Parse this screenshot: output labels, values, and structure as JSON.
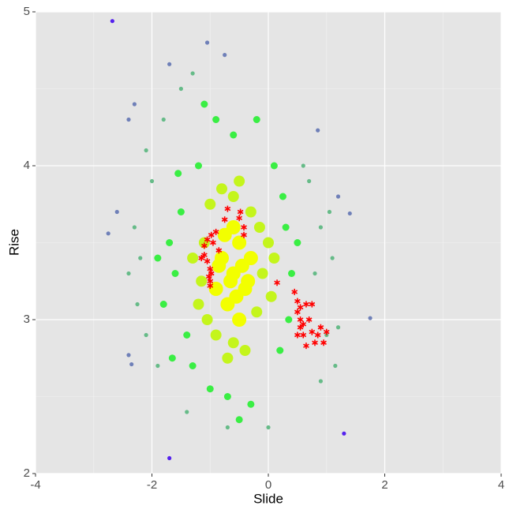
{
  "chart_data": {
    "type": "scatter",
    "x_label": "Slide",
    "y_label": "Rise",
    "xlim": [
      -4,
      4
    ],
    "xticks": [
      -4,
      -2,
      0,
      2,
      4
    ],
    "ylim": [
      2,
      5
    ],
    "yticks": [
      2,
      3,
      4,
      5
    ],
    "grid": true,
    "series": [
      {
        "color": "#f2ff00",
        "marker": "circle",
        "x": [
          -0.6,
          -0.4,
          -0.8,
          -0.5,
          -0.7,
          -0.3,
          -0.9,
          -0.6,
          -0.5,
          -0.75,
          -0.45,
          -0.65,
          -0.55,
          -0.85,
          -0.35
        ],
        "values": [
          3.3,
          3.2,
          3.4,
          3.5,
          3.1,
          3.4,
          3.2,
          3.6,
          3.0,
          3.55,
          3.35,
          3.25,
          3.15,
          3.35,
          3.25
        ]
      },
      {
        "color": "#c4f51c",
        "marker": "circle",
        "x": [
          -1.1,
          -0.1,
          -0.6,
          -0.6,
          -1.2,
          0.0,
          -0.2,
          -1.0,
          -0.3,
          -0.9,
          -1.3,
          0.05,
          -0.4,
          -0.8,
          -1.15,
          -0.15,
          -0.7,
          -0.5,
          -1.05,
          0.1
        ],
        "values": [
          3.5,
          3.3,
          3.8,
          2.85,
          3.1,
          3.5,
          3.05,
          3.75,
          3.7,
          2.9,
          3.4,
          3.15,
          2.8,
          3.85,
          3.25,
          3.6,
          2.75,
          3.9,
          3.0,
          3.4
        ]
      },
      {
        "color": "#3aee44",
        "marker": "circle",
        "x": [
          -1.6,
          -1.5,
          -1.4,
          0.4,
          0.3,
          -0.6,
          -0.7,
          -1.2,
          0.1,
          -1.7,
          -1.3,
          0.2,
          -0.2,
          -1.0,
          0.5,
          -1.8,
          -0.9,
          -0.3,
          0.35,
          -1.55,
          -1.9,
          0.25,
          -0.5,
          -1.1,
          -1.65
        ],
        "values": [
          3.3,
          3.7,
          2.9,
          3.3,
          3.6,
          4.2,
          2.5,
          4.0,
          4.0,
          3.5,
          2.7,
          2.8,
          4.3,
          2.55,
          3.5,
          3.1,
          4.3,
          2.45,
          3.0,
          3.95,
          3.4,
          3.8,
          2.35,
          4.4,
          2.75
        ]
      },
      {
        "color": "#66bb88",
        "marker": "circle",
        "x": [
          -2.2,
          -2.0,
          -2.1,
          0.8,
          0.9,
          1.0,
          0.7,
          -1.8,
          -2.3,
          -2.25,
          1.1,
          0.6,
          -1.5,
          -1.9,
          1.2,
          -2.4,
          0.9,
          -1.4,
          -0.7,
          1.05,
          -1.3,
          0.0,
          1.15,
          -2.1
        ],
        "values": [
          3.4,
          3.9,
          2.9,
          3.3,
          3.6,
          2.9,
          3.9,
          4.3,
          3.6,
          3.1,
          3.4,
          4.0,
          4.5,
          2.7,
          2.95,
          3.3,
          2.6,
          2.4,
          2.3,
          3.7,
          4.6,
          2.3,
          2.7,
          4.1
        ]
      },
      {
        "color": "#6f80b8",
        "marker": "circle",
        "x": [
          -2.3,
          -2.6,
          -2.75,
          1.4,
          0.85,
          1.75,
          -1.05,
          -0.75,
          -2.4,
          -2.35,
          -1.7,
          -2.4,
          1.2
        ],
        "values": [
          4.4,
          3.7,
          3.56,
          3.69,
          4.23,
          3.01,
          4.8,
          4.72,
          2.77,
          2.71,
          4.66,
          4.3,
          3.8
        ]
      },
      {
        "color": "#5522ee",
        "marker": "circle",
        "x": [
          -2.68,
          -1.7,
          1.3
        ],
        "values": [
          4.94,
          2.1,
          2.26
        ]
      },
      {
        "color": "#ff0000",
        "marker": "star",
        "x": [
          -1.0,
          -1.0,
          -1.02,
          -0.98,
          -1.0,
          -1.05,
          -1.1,
          -1.15,
          -1.1,
          -1.05,
          -0.98,
          -0.9,
          -0.85,
          -0.95,
          -0.75,
          -0.7,
          -0.5,
          -0.48,
          -0.42,
          -0.42,
          0.15,
          0.45,
          0.5,
          0.55,
          0.5,
          0.65,
          0.75,
          0.55,
          0.6,
          0.7,
          0.5,
          0.6,
          0.75,
          0.85,
          0.9,
          1.0,
          0.65,
          0.8,
          0.95,
          0.55
        ],
        "values": [
          3.22,
          3.25,
          3.28,
          3.3,
          3.33,
          3.38,
          3.42,
          3.4,
          3.48,
          3.52,
          3.55,
          3.57,
          3.45,
          3.5,
          3.65,
          3.72,
          3.66,
          3.7,
          3.6,
          3.55,
          3.24,
          3.18,
          3.12,
          3.08,
          3.05,
          3.1,
          3.1,
          3.0,
          2.97,
          3.0,
          2.9,
          2.9,
          2.92,
          2.9,
          2.95,
          2.92,
          2.83,
          2.85,
          2.85,
          2.95
        ]
      }
    ]
  }
}
